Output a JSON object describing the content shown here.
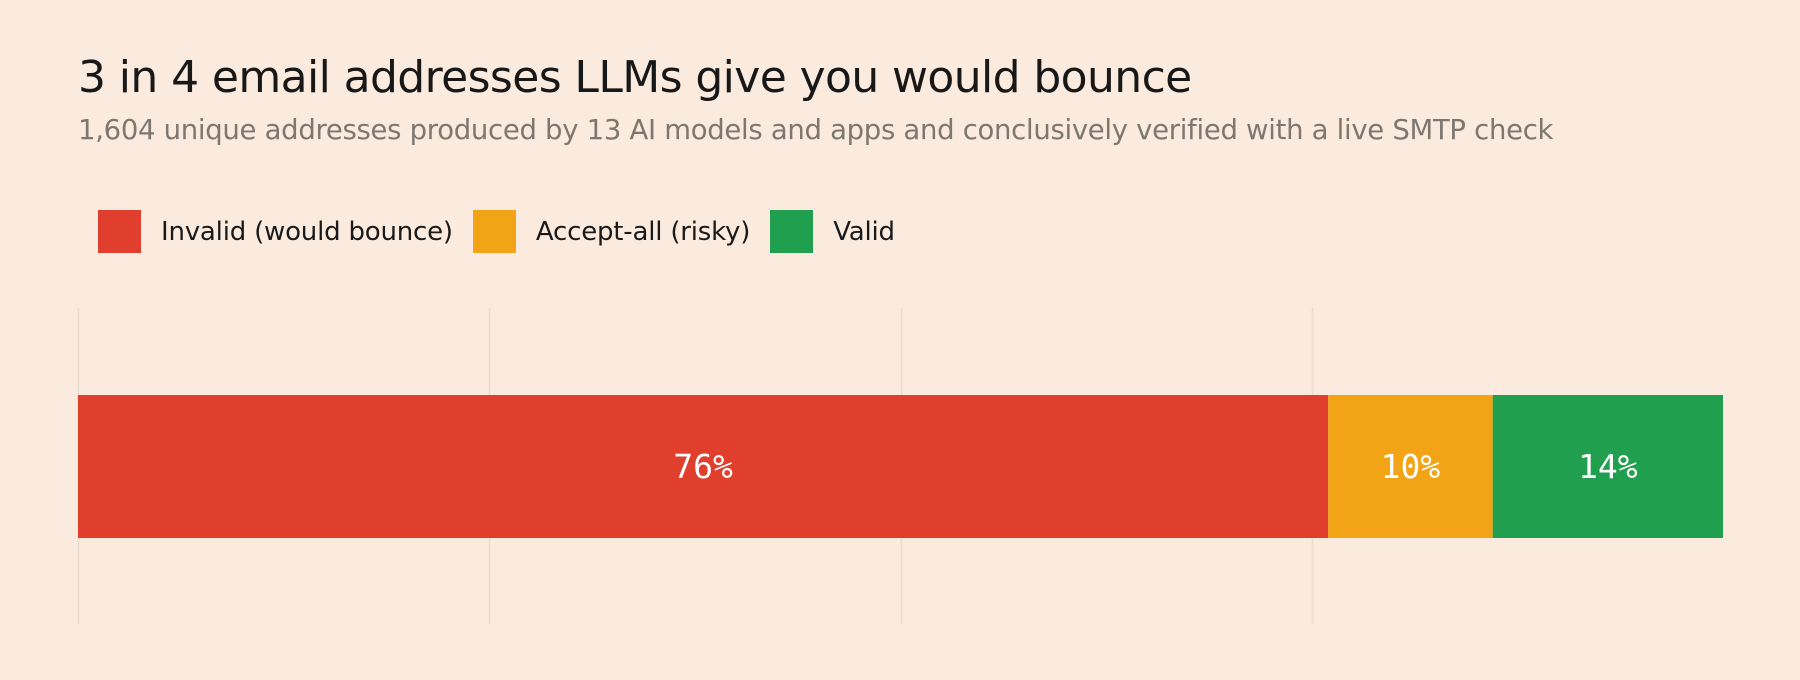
{
  "chart_data": {
    "type": "bar",
    "orientation": "horizontal",
    "stacked": true,
    "normalized": true,
    "title": "3 in 4 email addresses LLMs give you would bounce",
    "subtitle": "1,604 unique addresses produced by 13 AI models and apps and conclusively verified with a live SMTP check",
    "xlim": [
      0,
      100
    ],
    "grid": true,
    "legend_position": "top-left",
    "series": [
      {
        "name": "Invalid (would bounce)",
        "value": 76,
        "label": "76%",
        "color": "#e03f2d",
        "color_name": "red"
      },
      {
        "name": "Accept-all (risky)",
        "value": 10,
        "label": "10%",
        "color": "#f3a416",
        "color_name": "amber"
      },
      {
        "name": "Valid",
        "value": 14,
        "label": "14%",
        "color": "#20a04e",
        "color_name": "green"
      }
    ]
  }
}
